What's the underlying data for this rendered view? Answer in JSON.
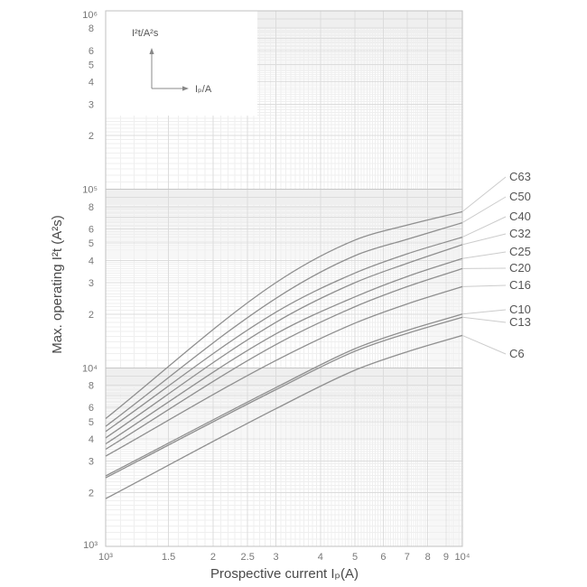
{
  "chart": {
    "y_axis": {
      "title": "Max. operating I²t (A²s)",
      "scale": "log",
      "major_ticks": [
        {
          "value": 1000,
          "label": "10³"
        },
        {
          "value": 10000,
          "label": "10⁴"
        },
        {
          "value": 100000,
          "label": "10⁵"
        },
        {
          "value": 1000000,
          "label": "10⁶"
        }
      ],
      "minor_tick_labels": [
        "2",
        "3",
        "4",
        "5",
        "6",
        "8"
      ],
      "minor_tick_mantissas": [
        2,
        3,
        4,
        5,
        6,
        8
      ]
    },
    "x_axis": {
      "title": "Prospective current Iₚ(A)",
      "scale": "log",
      "ticks": [
        {
          "value": 1000,
          "label": "10³"
        },
        {
          "value": 1500,
          "label": "1.5"
        },
        {
          "value": 2000,
          "label": "2"
        },
        {
          "value": 2500,
          "label": "2.5"
        },
        {
          "value": 3000,
          "label": "3"
        },
        {
          "value": 4000,
          "label": "4"
        },
        {
          "value": 5000,
          "label": "5"
        },
        {
          "value": 6000,
          "label": "6"
        },
        {
          "value": 7000,
          "label": "7"
        },
        {
          "value": 8000,
          "label": "8"
        },
        {
          "value": 9000,
          "label": "9"
        },
        {
          "value": 10000,
          "label": "10⁴"
        }
      ]
    },
    "inset_legend": {
      "y_label": "I²t/A²s",
      "x_label": "Iₚ/A"
    },
    "colors": {
      "curve": "#8f8f8f",
      "leader": "#cccccc",
      "grid_minor": "#efefef",
      "grid_mid": "#dcdcdc",
      "grid_major": "#c6c6c6",
      "frame": "#c2c2c2",
      "tick_text": "#777777",
      "label_text": "#555555",
      "title_text": "#4a4a4a",
      "background": "#ffffff"
    }
  },
  "chart_data": {
    "type": "line",
    "x_scale": "log",
    "y_scale": "log",
    "title": "",
    "xlabel": "Prospective current Ip (A)",
    "ylabel": "Max. operating I2t (A2s)",
    "xlim": [
      1000,
      10000
    ],
    "ylim": [
      1000,
      1000000
    ],
    "grid": "log-log fine grid, on",
    "legend_position": "curve labels at right with leader lines",
    "x": [
      1000,
      3000,
      5000,
      7000,
      10000
    ],
    "series": [
      {
        "name": "C63",
        "values": [
          5200,
          30000,
          52000,
          63000,
          75000
        ]
      },
      {
        "name": "C50",
        "values": [
          4700,
          24500,
          42500,
          52500,
          65000
        ]
      },
      {
        "name": "C40",
        "values": [
          4400,
          20500,
          34000,
          43500,
          54000
        ]
      },
      {
        "name": "C32",
        "values": [
          4050,
          18000,
          30000,
          38500,
          49000
        ]
      },
      {
        "name": "C25",
        "values": [
          3750,
          15500,
          25000,
          32500,
          41000
        ]
      },
      {
        "name": "C20",
        "values": [
          3500,
          13500,
          22000,
          28500,
          36000
        ]
      },
      {
        "name": "C16",
        "values": [
          3200,
          11000,
          17800,
          22800,
          28500
        ]
      },
      {
        "name": "C10",
        "values": [
          2480,
          7750,
          12800,
          16200,
          20000
        ]
      },
      {
        "name": "C13",
        "values": [
          2420,
          7550,
          12400,
          15600,
          19200
        ]
      },
      {
        "name": "C6",
        "values": [
          1850,
          5900,
          9700,
          12300,
          15200
        ]
      }
    ]
  }
}
